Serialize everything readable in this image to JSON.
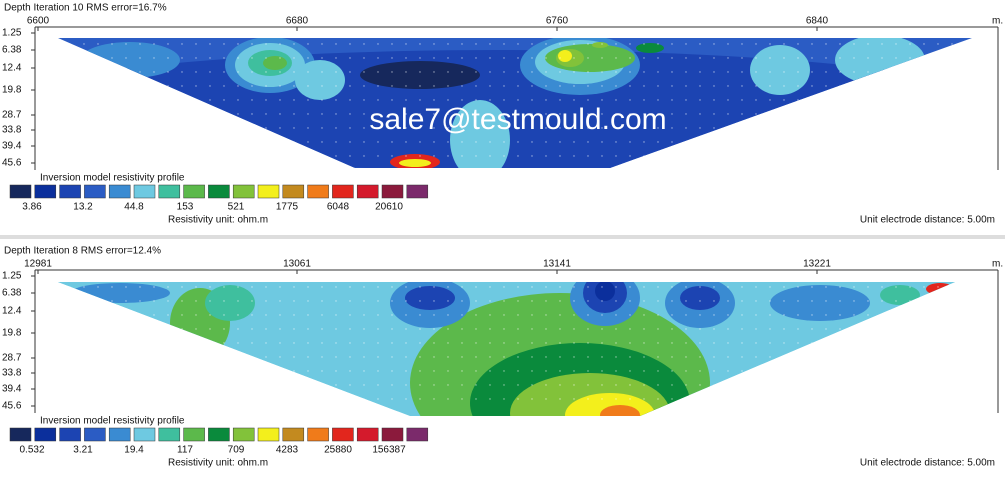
{
  "panels": [
    {
      "title": "Depth  Iteration 10 RMS error=16.7%",
      "x_labels": [
        "6600",
        "6680",
        "6760",
        "6840"
      ],
      "x_unit": "m.",
      "depths": [
        "1.25",
        "6.38",
        "12.4",
        "19.8",
        "28.7",
        "33.8",
        "39.4",
        "45.6"
      ],
      "legend": {
        "title": "Inversion model resistivity profile",
        "colors": [
          "#16285c",
          "#0b2f9c",
          "#1c44b2",
          "#2b5cc4",
          "#3a8bd2",
          "#6ec9e1",
          "#3fbf9e",
          "#5cb94b",
          "#0a8a3c",
          "#82c23a",
          "#f3ef1c",
          "#c38a1f",
          "#f07b1a",
          "#e2261d",
          "#d41a2c",
          "#8b1a3c",
          "#7b2a6b"
        ],
        "values": [
          "3.86",
          "13.2",
          "44.8",
          "153",
          "521",
          "1775",
          "6048",
          "20610"
        ],
        "unit": "Resistivity unit: ohm.m"
      },
      "electrode": "Unit electrode distance: 5.00m",
      "watermark": "sale7@testmould.com"
    },
    {
      "title": "Depth  Iteration 8    RMS error=12.4%",
      "x_labels": [
        "12981",
        "13061",
        "13141",
        "13221"
      ],
      "x_unit": "m.",
      "depths": [
        "1.25",
        "6.38",
        "12.4",
        "19.8",
        "28.7",
        "33.8",
        "39.4",
        "45.6"
      ],
      "legend": {
        "title": "Inversion model resistivity profile",
        "colors": [
          "#16285c",
          "#0b2f9c",
          "#1c44b2",
          "#2b5cc4",
          "#3a8bd2",
          "#6ec9e1",
          "#3fbf9e",
          "#5cb94b",
          "#0a8a3c",
          "#82c23a",
          "#f3ef1c",
          "#c38a1f",
          "#f07b1a",
          "#e2261d",
          "#d41a2c",
          "#8b1a3c",
          "#7b2a6b"
        ],
        "values": [
          "0.532",
          "3.21",
          "19.4",
          "117",
          "709",
          "4283",
          "25880",
          "156387"
        ],
        "unit": "Resistivity unit: ohm.m"
      },
      "electrode": "Unit electrode distance: 5.00m"
    }
  ]
}
